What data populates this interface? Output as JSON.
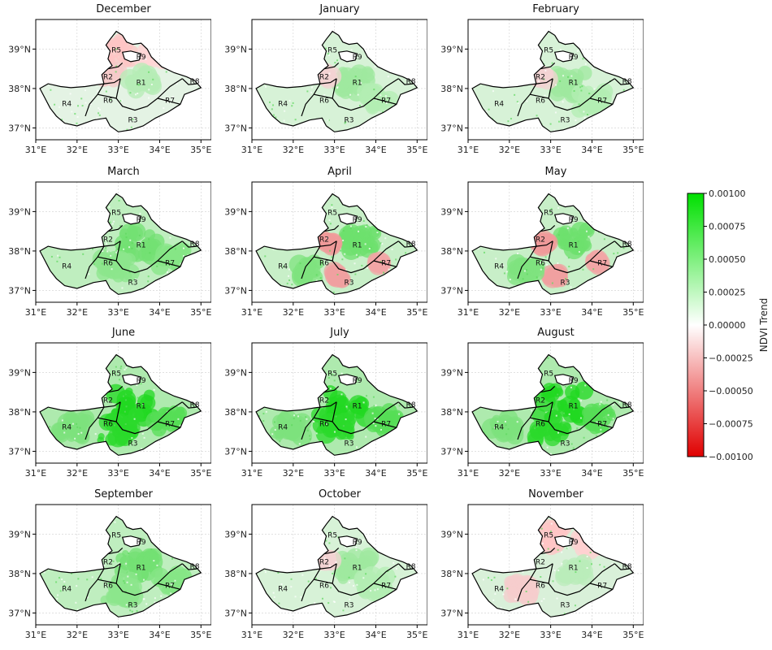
{
  "panels": [
    {
      "title": "December",
      "pattern": "winter"
    },
    {
      "title": "January",
      "pattern": "light"
    },
    {
      "title": "February",
      "pattern": "light"
    },
    {
      "title": "March",
      "pattern": "spring"
    },
    {
      "title": "April",
      "pattern": "mixed"
    },
    {
      "title": "May",
      "pattern": "mixed"
    },
    {
      "title": "June",
      "pattern": "strong"
    },
    {
      "title": "July",
      "pattern": "strong"
    },
    {
      "title": "August",
      "pattern": "strong"
    },
    {
      "title": "September",
      "pattern": "spring"
    },
    {
      "title": "October",
      "pattern": "light"
    },
    {
      "title": "November",
      "pattern": "autumn"
    }
  ],
  "axes": {
    "lat_ticks": [
      "37°N",
      "38°N",
      "39°N"
    ],
    "lon_ticks": [
      "31°E",
      "32°E",
      "33°E",
      "34°E",
      "35°E"
    ]
  },
  "regions": [
    "R1",
    "R2",
    "R3",
    "R4",
    "R5",
    "R6",
    "R7",
    "R8",
    "R9"
  ],
  "colorbar": {
    "label": "NDVI Trend",
    "ticks": [
      "0.00100",
      "0.00075",
      "0.00050",
      "0.00025",
      "0.00000",
      "−0.00025",
      "−0.00050",
      "−0.00075",
      "−0.00100"
    ],
    "range": [
      -0.001,
      0.001
    ],
    "colors": {
      "high": "#00e000",
      "mid": "#ffffff",
      "low": "#e00000"
    }
  }
}
